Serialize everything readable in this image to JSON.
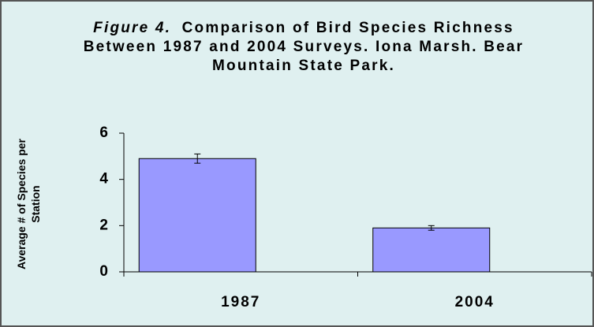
{
  "chart_data": {
    "type": "bar",
    "figure_label": "Figure 4.",
    "title": "Comparison of Bird Species Richness Between 1987 and 2004 Surveys. Iona Marsh. Bear Mountain State Park.",
    "ylabel": "Average # of Species per Station",
    "categories": [
      "1987",
      "2004"
    ],
    "values": [
      4.9,
      1.9
    ],
    "errors": [
      0.2,
      0.1
    ],
    "color": "#9999ff",
    "ylim": [
      0,
      6
    ],
    "yticks": [
      0,
      2,
      4,
      6
    ],
    "grid": false
  }
}
